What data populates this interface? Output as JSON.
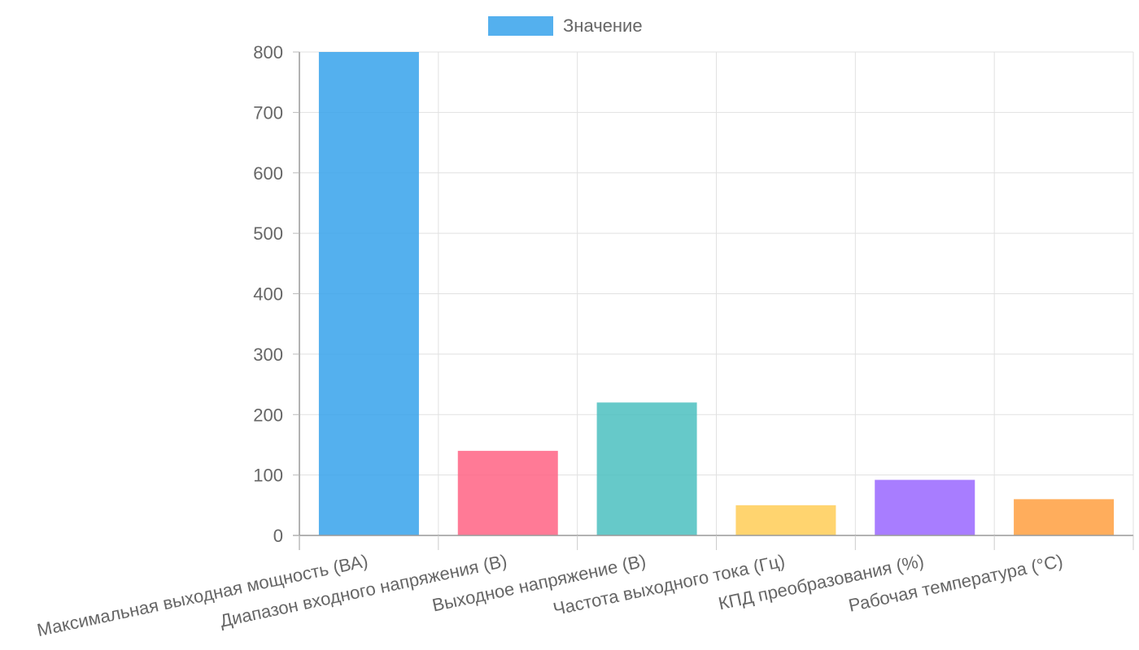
{
  "chart_data": {
    "type": "bar",
    "categories": [
      "Максимальная выходная мощность (ВА)",
      "Диапазон входного напряжения (В)",
      "Выходное напряжение (В)",
      "Частота выходного тока (Гц)",
      "КПД преобразования (%)",
      "Рабочая температура (°C)"
    ],
    "series": [
      {
        "name": "Значение",
        "values": [
          800,
          140,
          220,
          50,
          92,
          60
        ]
      }
    ],
    "bar_colors": [
      "#36a2eb",
      "#ff6384",
      "#4bc0c0",
      "#ffcd56",
      "#9966ff",
      "#ff9f40"
    ],
    "legend_color": "#36a2eb",
    "ylim": [
      0,
      800
    ],
    "yticks": [
      0,
      100,
      200,
      300,
      400,
      500,
      600,
      700,
      800
    ],
    "title": "",
    "xlabel": "",
    "ylabel": "",
    "grid": true,
    "legend_position": "top"
  }
}
